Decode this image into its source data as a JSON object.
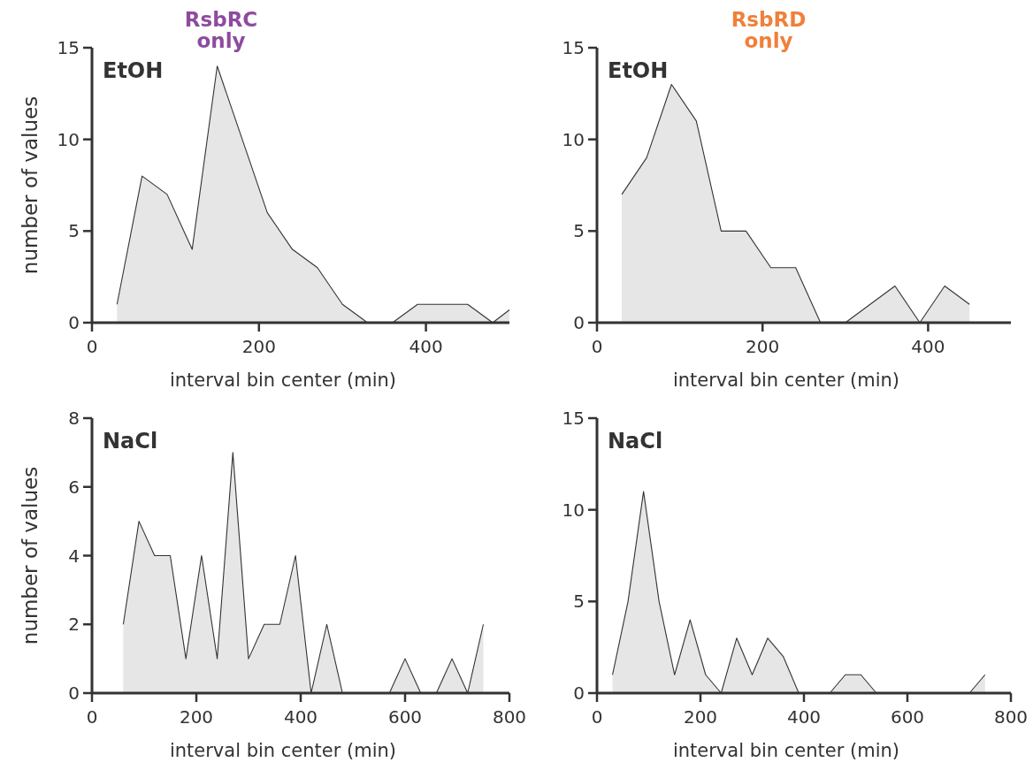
{
  "chart_data": [
    {
      "type": "area",
      "title": "RsbRC only",
      "xlabel": "interval bin center (min)",
      "ylabel": "number of values",
      "annotations": [
        "EtOH"
      ],
      "xlim": [
        0,
        500
      ],
      "xticks": [
        0,
        200,
        400
      ],
      "ylim": [
        0,
        15
      ],
      "yticks": [
        0,
        5,
        10,
        15
      ],
      "series": [
        {
          "color": "#e6e6e6",
          "x": [
            30,
            60,
            90,
            120,
            150,
            180,
            210,
            240,
            270,
            300,
            330,
            360,
            390,
            420,
            450,
            480,
            500
          ],
          "values": [
            1,
            8,
            7,
            4,
            14,
            10,
            6,
            4,
            3,
            1,
            0,
            0,
            1,
            1,
            1,
            0,
            0.7
          ]
        }
      ]
    },
    {
      "type": "area",
      "title": "RsbRD only",
      "xlabel": "interval bin center (min)",
      "annotations": [
        "EtOH"
      ],
      "xlim": [
        0,
        500
      ],
      "xticks": [
        0,
        200,
        400
      ],
      "ylim": [
        0,
        15
      ],
      "yticks": [
        0,
        5,
        10,
        15
      ],
      "series": [
        {
          "color": "#e6e6e6",
          "x": [
            30,
            60,
            90,
            120,
            150,
            180,
            210,
            240,
            270,
            300,
            330,
            360,
            390,
            420,
            450
          ],
          "values": [
            7,
            9,
            13,
            11,
            5,
            5,
            3,
            3,
            0,
            0,
            1,
            2,
            0,
            2,
            1
          ]
        }
      ]
    },
    {
      "type": "area",
      "xlabel": "interval bin center (min)",
      "ylabel": "number of values",
      "annotations": [
        "NaCl"
      ],
      "xlim": [
        0,
        800
      ],
      "xticks": [
        0,
        200,
        400,
        600,
        800
      ],
      "ylim": [
        0,
        8
      ],
      "yticks": [
        0,
        2,
        4,
        6,
        8
      ],
      "series": [
        {
          "color": "#e6e6e6",
          "x": [
            60,
            90,
            120,
            150,
            180,
            210,
            240,
            270,
            300,
            330,
            360,
            390,
            420,
            450,
            480,
            510,
            540,
            570,
            600,
            630,
            660,
            690,
            720,
            750
          ],
          "values": [
            2,
            5,
            4,
            4,
            1,
            4,
            1,
            7,
            1,
            2,
            2,
            4,
            0,
            2,
            0,
            0,
            0,
            0,
            1,
            0,
            0,
            1,
            0,
            2
          ]
        }
      ]
    },
    {
      "type": "area",
      "xlabel": "interval bin center (min)",
      "annotations": [
        "NaCl"
      ],
      "xlim": [
        0,
        800
      ],
      "xticks": [
        0,
        200,
        400,
        600,
        800
      ],
      "ylim": [
        0,
        15
      ],
      "yticks": [
        0,
        5,
        10,
        15
      ],
      "series": [
        {
          "color": "#e6e6e6",
          "x": [
            30,
            60,
            90,
            120,
            150,
            180,
            210,
            240,
            270,
            300,
            330,
            360,
            390,
            420,
            450,
            480,
            510,
            540,
            570,
            600,
            630,
            660,
            690,
            720,
            750
          ],
          "values": [
            1,
            5,
            11,
            5,
            1,
            4,
            1,
            0,
            3,
            1,
            3,
            2,
            0,
            0,
            0,
            1,
            1,
            0,
            0,
            0,
            0,
            0,
            0,
            0,
            1
          ]
        }
      ]
    }
  ]
}
